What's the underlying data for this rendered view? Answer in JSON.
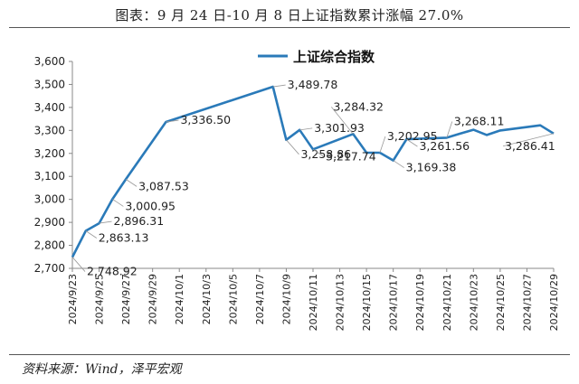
{
  "title": "图表：9 月 24 日-10 月 8 日上证指数累计涨幅 27.0%",
  "source": "资料来源：Wind，泽平宏观",
  "colors": {
    "line": "#2a7ab9",
    "axis": "#888888",
    "leader": "#9a9a9a"
  },
  "chart_data": {
    "type": "line",
    "title": "图表：9 月 24 日-10 月 8 日上证指数累计涨幅 27.0%",
    "ylim": [
      2700,
      3600
    ],
    "yticks": [
      2700,
      2800,
      2900,
      3000,
      3100,
      3200,
      3300,
      3400,
      3500,
      3600
    ],
    "ytick_labels": [
      "2,700",
      "2,800",
      "2,900",
      "3,000",
      "3,100",
      "3,200",
      "3,300",
      "3,400",
      "3,500",
      "3,600"
    ],
    "xtick_labels": [
      "2024/9/23",
      "2024/9/25",
      "2024/9/27",
      "2024/9/29",
      "2024/10/1",
      "2024/10/3",
      "2024/10/5",
      "2024/10/7",
      "2024/10/9",
      "2024/10/11",
      "2024/10/13",
      "2024/10/15",
      "2024/10/17",
      "2024/10/19",
      "2024/10/21",
      "2024/10/23",
      "2024/10/25",
      "2024/10/27",
      "2024/10/29"
    ],
    "legend_position": "top-center",
    "series": [
      {
        "name": "上证综合指数",
        "points": [
          {
            "x": "2024/9/23",
            "y": 2748.92
          },
          {
            "x": "2024/9/24",
            "y": 2863.13
          },
          {
            "x": "2024/9/25",
            "y": 2896.31
          },
          {
            "x": "2024/9/26",
            "y": 3000.95
          },
          {
            "x": "2024/9/27",
            "y": 3087.53
          },
          {
            "x": "2024/9/30",
            "y": 3336.5
          },
          {
            "x": "2024/10/8",
            "y": 3489.78
          },
          {
            "x": "2024/10/9",
            "y": 3258.86
          },
          {
            "x": "2024/10/10",
            "y": 3301.93
          },
          {
            "x": "2024/10/11",
            "y": 3217.74
          },
          {
            "x": "2024/10/14",
            "y": 3284.32
          },
          {
            "x": "2024/10/15",
            "y": 3202.95
          },
          {
            "x": "2024/10/16",
            "y": 3202.95
          },
          {
            "x": "2024/10/17",
            "y": 3169.38
          },
          {
            "x": "2024/10/18",
            "y": 3261.56
          },
          {
            "x": "2024/10/21",
            "y": 3268.11
          },
          {
            "x": "2024/10/22",
            "y": 3285.87
          },
          {
            "x": "2024/10/23",
            "y": 3302.8
          },
          {
            "x": "2024/10/24",
            "y": 3280.26
          },
          {
            "x": "2024/10/25",
            "y": 3299.7
          },
          {
            "x": "2024/10/28",
            "y": 3322.2
          },
          {
            "x": "2024/10/29",
            "y": 3286.41
          }
        ]
      }
    ],
    "data_labels": [
      {
        "x": "2024/9/23",
        "y": 2748.92,
        "text": "2,748.92",
        "side": "below"
      },
      {
        "x": "2024/9/24",
        "y": 2863.13,
        "text": "2,863.13",
        "side": "below-right"
      },
      {
        "x": "2024/9/25",
        "y": 2896.31,
        "text": "2,896.31",
        "side": "right"
      },
      {
        "x": "2024/9/26",
        "y": 3000.95,
        "text": "3,000.95",
        "side": "below-right"
      },
      {
        "x": "2024/9/27",
        "y": 3087.53,
        "text": "3,087.53",
        "side": "below-right"
      },
      {
        "x": "2024/9/30",
        "y": 3336.5,
        "text": "3,336.50",
        "side": "right"
      },
      {
        "x": "2024/10/8",
        "y": 3489.78,
        "text": "3,489.78",
        "side": "right"
      },
      {
        "x": "2024/10/9",
        "y": 3258.86,
        "text": "3,258.86",
        "side": "below"
      },
      {
        "x": "2024/10/10",
        "y": 3301.93,
        "text": "3,301.93",
        "side": "right"
      },
      {
        "x": "2024/10/11",
        "y": 3217.74,
        "text": "3,217.74",
        "side": "below-right"
      },
      {
        "x": "2024/10/14",
        "y": 3284.32,
        "text": "3,284.32",
        "side": "above"
      },
      {
        "x": "2024/10/16",
        "y": 3202.95,
        "text": "3,202.95",
        "side": "above-right"
      },
      {
        "x": "2024/10/17",
        "y": 3169.38,
        "text": "3,169.38",
        "side": "below-right"
      },
      {
        "x": "2024/10/18",
        "y": 3261.56,
        "text": "3,261.56",
        "side": "below-right"
      },
      {
        "x": "2024/10/21",
        "y": 3268.11,
        "text": "3,268.11",
        "side": "above-right"
      },
      {
        "x": "2024/10/29",
        "y": 3286.41,
        "text": "3,286.41",
        "side": "below-left"
      }
    ]
  }
}
